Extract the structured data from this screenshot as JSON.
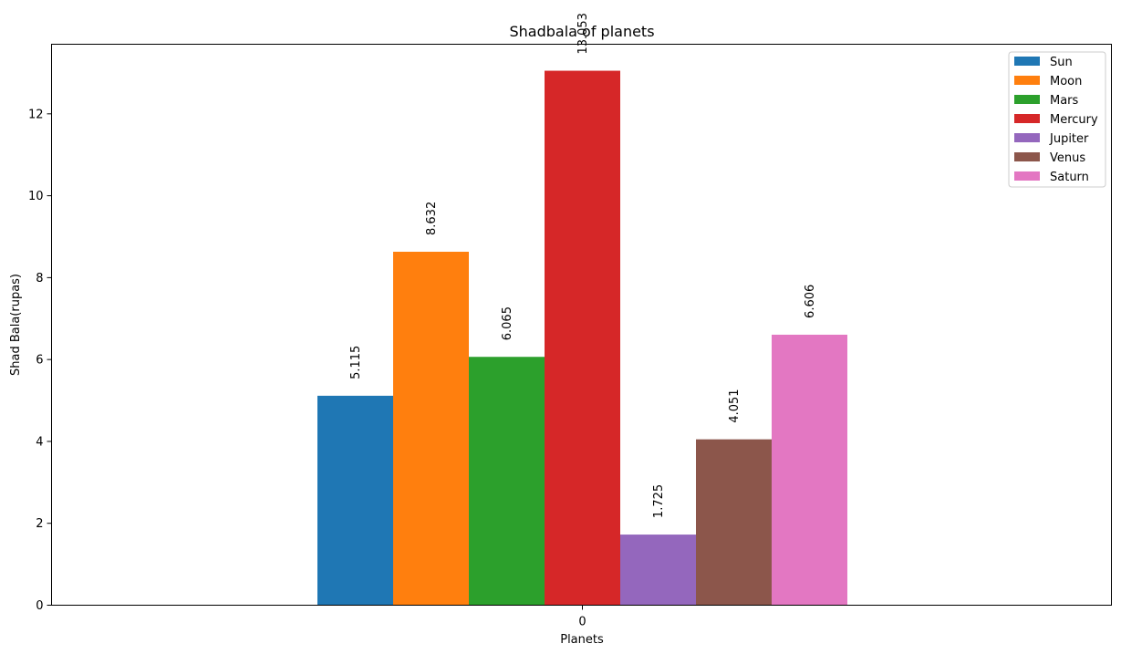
{
  "chart_data": {
    "type": "bar",
    "title": "Shadbala of planets",
    "xlabel": "Planets",
    "ylabel": "Shad Bala(rupas)",
    "categories": [
      "0"
    ],
    "ylim": [
      0,
      13.7
    ],
    "yticks": [
      0,
      2,
      4,
      6,
      8,
      10,
      12
    ],
    "legend_position": "top-right",
    "series": [
      {
        "name": "Sun",
        "values": [
          5.115
        ],
        "color": "#1f77b4",
        "label": "5.115"
      },
      {
        "name": "Moon",
        "values": [
          8.632
        ],
        "color": "#ff7f0e",
        "label": "8.632"
      },
      {
        "name": "Mars",
        "values": [
          6.065
        ],
        "color": "#2ca02c",
        "label": "6.065"
      },
      {
        "name": "Mercury",
        "values": [
          13.053
        ],
        "color": "#d62728",
        "label": "13.053"
      },
      {
        "name": "Jupiter",
        "values": [
          1.725
        ],
        "color": "#9467bd",
        "label": "1.725"
      },
      {
        "name": "Venus",
        "values": [
          4.051
        ],
        "color": "#8c564b",
        "label": "4.051"
      },
      {
        "name": "Saturn",
        "values": [
          6.606
        ],
        "color": "#e377c2",
        "label": "6.606"
      }
    ]
  }
}
